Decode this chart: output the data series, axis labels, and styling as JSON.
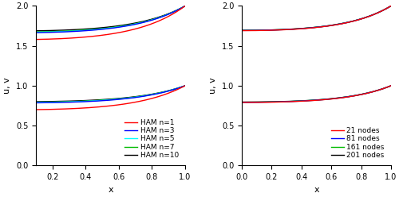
{
  "xlim_left": [
    0.1,
    1.0
  ],
  "xlim_right": [
    0.0,
    1.0
  ],
  "ylim": [
    0.0,
    2.0
  ],
  "yticks": [
    0.0,
    0.5,
    1.0,
    1.5,
    2.0
  ],
  "xticks_left": [
    0.2,
    0.4,
    0.6,
    0.8,
    1.0
  ],
  "xticks_right": [
    0.0,
    0.2,
    0.4,
    0.6,
    0.8,
    1.0
  ],
  "xlabel": "x",
  "ylabel": "u, v",
  "ham_colors": [
    "#ff0000",
    "#0000ff",
    "#00ffff",
    "#00bb00",
    "#000000"
  ],
  "ham_labels": [
    "HAM n=1",
    "HAM n=3",
    "HAM n=5",
    "HAM n=7",
    "HAM n=10"
  ],
  "bdim_colors": [
    "#ff0000",
    "#0000ff",
    "#00bb00",
    "#000000"
  ],
  "bdim_labels": [
    "21 nodes",
    "81 nodes",
    "161 nodes",
    "201 nodes"
  ],
  "background": "#ffffff",
  "linewidth": 1.0,
  "legend_fontsize": 6.5,
  "tick_fontsize": 7,
  "label_fontsize": 8,
  "figsize": [
    5.0,
    2.48
  ],
  "dpi": 100
}
